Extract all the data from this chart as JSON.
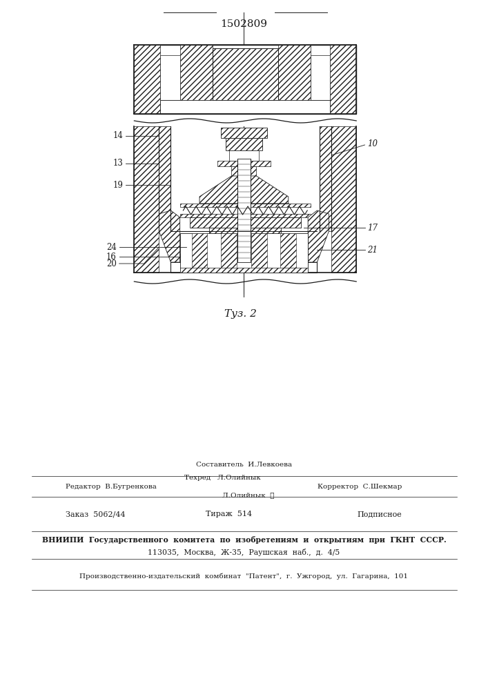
{
  "patent_number": "1502809",
  "fig_label": "Τуз. 2",
  "bg_color": "#ffffff",
  "line_color": "#1a1a1a",
  "editor_line": "Редактор  В.Бугренкова",
  "compiler_line": "Составитель  И.Левкоева",
  "techred_line": "Техред   Л.Олийнык",
  "corrector_line": "Корректор  С.Шекмар",
  "order_line": "Заказ  5062/44",
  "tirazh_line": "Тираж  514",
  "podpisnoe_line": "Подписное",
  "vniiipi_line1": "ВНИИПИ  Государственного  комитета  по  изобретениям  и  открытиям  при  ГКНТ  СССР.",
  "vniiipi_line2": "113035,  Москва,  Ж-35,  Раушская  наб.,  д.  4/5",
  "kombinat_line": "Производственно-издательский  комбинат  \"Патент\",  г.  Ужгород,  ул.  Гагарина,  101"
}
